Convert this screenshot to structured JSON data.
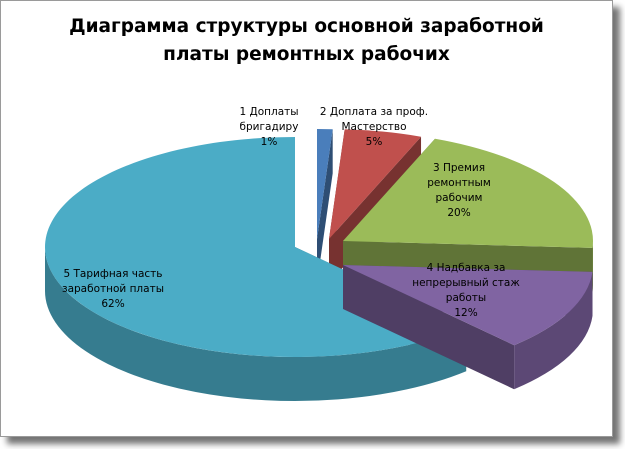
{
  "chart_data": {
    "type": "pie",
    "style": "3d-exploded",
    "title_lines": [
      "Диаграмма структуры основной заработной",
      "платы ремонтных рабочих"
    ],
    "slices": [
      {
        "label_lines": [
          "1 Доплаты",
          "бригадиру"
        ],
        "pct_label": "1%",
        "value": 1,
        "color": "#4a7ebb"
      },
      {
        "label_lines": [
          "2 Доплата за проф.",
          "Мастерство"
        ],
        "pct_label": "5%",
        "value": 5,
        "color": "#c0504d"
      },
      {
        "label_lines": [
          "3 Премия",
          "ремонтным",
          "рабочим"
        ],
        "pct_label": "20%",
        "value": 20,
        "color": "#9bbb59"
      },
      {
        "label_lines": [
          "4 Надбавка за",
          "непрерывный стаж",
          "работы"
        ],
        "pct_label": "12%",
        "value": 12,
        "color": "#8064a2"
      },
      {
        "label_lines": [
          "5 Тарифная часть",
          "заработной платы"
        ],
        "pct_label": "62%",
        "value": 62,
        "color": "#4bacc6"
      }
    ]
  }
}
